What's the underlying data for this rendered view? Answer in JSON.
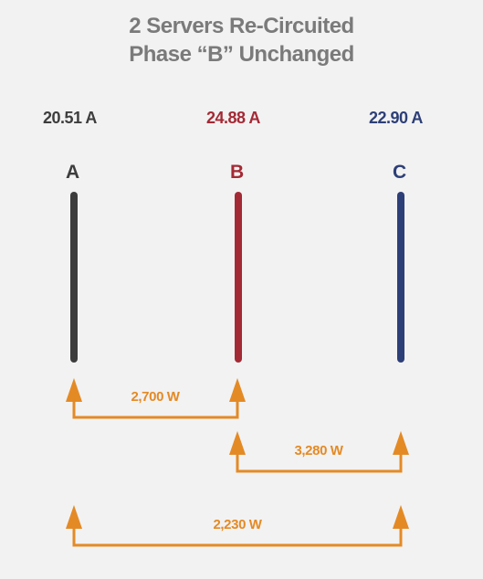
{
  "title": {
    "line1": "2 Servers Re-Circuited",
    "line2": "Phase “B” Unchanged"
  },
  "phases": [
    {
      "label": "A",
      "current": "20.51 A",
      "color": "#3d3d3d"
    },
    {
      "label": "B",
      "current": "24.88 A",
      "color": "#a32a35"
    },
    {
      "label": "C",
      "current": "22.90 A",
      "color": "#2d3f77"
    }
  ],
  "transfers": [
    {
      "from": "A",
      "to": "B",
      "label": "2,700 W"
    },
    {
      "from": "B",
      "to": "C",
      "label": "3,280 W"
    },
    {
      "from": "A",
      "to": "C",
      "label": "2,230 W"
    }
  ],
  "arrow_color": "#e48a25"
}
